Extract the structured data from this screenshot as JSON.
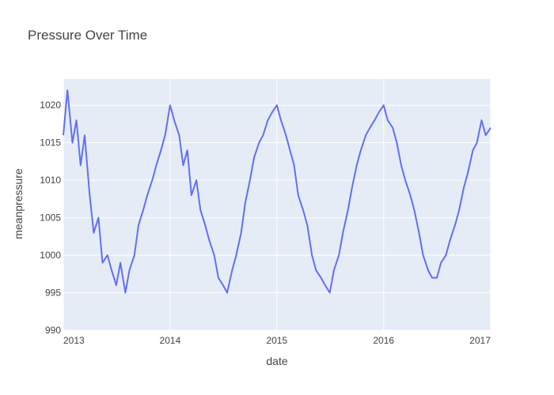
{
  "chart_data": {
    "type": "line",
    "title": "Pressure Over Time",
    "xlabel": "date",
    "ylabel": "meanpressure",
    "x_range": [
      "2013-01-01",
      "2017-01-01"
    ],
    "ylim": [
      990,
      1023.5
    ],
    "x_ticks": [
      {
        "date": "2013-01-01",
        "label": "2013"
      },
      {
        "date": "2014-01-01",
        "label": "2014"
      },
      {
        "date": "2015-01-01",
        "label": "2015"
      },
      {
        "date": "2016-01-01",
        "label": "2016"
      },
      {
        "date": "2017-01-01",
        "label": "2017"
      }
    ],
    "y_ticks": [
      990,
      995,
      1000,
      1005,
      1010,
      1015,
      1020
    ],
    "grid": true,
    "colors": {
      "line": "#636efa",
      "plot_bg": "#e5ecf6",
      "grid": "#ffffff"
    },
    "series": [
      {
        "x": [
          "2013-01-01",
          "2013-01-15",
          "2013-02-01",
          "2013-02-15",
          "2013-03-01",
          "2013-03-15",
          "2013-04-01",
          "2013-04-15",
          "2013-05-01",
          "2013-05-15",
          "2013-06-01",
          "2013-06-15",
          "2013-07-01",
          "2013-07-15",
          "2013-08-01",
          "2013-08-15",
          "2013-09-01",
          "2013-09-15",
          "2013-10-01",
          "2013-10-15",
          "2013-11-01",
          "2013-11-15",
          "2013-12-01",
          "2013-12-15",
          "2014-01-01",
          "2014-01-15",
          "2014-02-01",
          "2014-02-15",
          "2014-03-01",
          "2014-03-15",
          "2014-04-01",
          "2014-04-15",
          "2014-05-01",
          "2014-05-15",
          "2014-06-01",
          "2014-06-15",
          "2014-07-01",
          "2014-07-15",
          "2014-08-01",
          "2014-08-15",
          "2014-09-01",
          "2014-09-15",
          "2014-10-01",
          "2014-10-15",
          "2014-11-01",
          "2014-11-15",
          "2014-12-01",
          "2014-12-15",
          "2015-01-01",
          "2015-01-15",
          "2015-02-01",
          "2015-02-15",
          "2015-03-01",
          "2015-03-15",
          "2015-04-01",
          "2015-04-15",
          "2015-05-01",
          "2015-05-15",
          "2015-06-01",
          "2015-06-15",
          "2015-07-01",
          "2015-07-15",
          "2015-08-01",
          "2015-08-15",
          "2015-09-01",
          "2015-09-15",
          "2015-10-01",
          "2015-10-15",
          "2015-11-01",
          "2015-11-15",
          "2015-12-01",
          "2015-12-15",
          "2016-01-01",
          "2016-01-15",
          "2016-02-01",
          "2016-02-15",
          "2016-03-01",
          "2016-03-15",
          "2016-04-01",
          "2016-04-15",
          "2016-05-01",
          "2016-05-15",
          "2016-06-01",
          "2016-06-15",
          "2016-07-01",
          "2016-07-15",
          "2016-08-01",
          "2016-08-15",
          "2016-09-01",
          "2016-09-15",
          "2016-10-01",
          "2016-10-15",
          "2016-11-01",
          "2016-11-15",
          "2016-12-01",
          "2016-12-15",
          "2017-01-01"
        ],
        "y": [
          1016,
          1022,
          1015,
          1018,
          1012,
          1016,
          1008,
          1003,
          1005,
          999,
          1000,
          998,
          996,
          999,
          995,
          998,
          1000,
          1004,
          1006,
          1008,
          1010,
          1012,
          1014,
          1016,
          1020,
          1018,
          1016,
          1012,
          1014,
          1008,
          1010,
          1006,
          1004,
          1002,
          1000,
          997,
          996,
          995,
          998,
          1000,
          1003,
          1007,
          1010,
          1013,
          1015,
          1016,
          1018,
          1019,
          1020,
          1018,
          1016,
          1014,
          1012,
          1008,
          1006,
          1004,
          1000,
          998,
          997,
          996,
          995,
          998,
          1000,
          1003,
          1006,
          1009,
          1012,
          1014,
          1016,
          1017,
          1018,
          1019,
          1020,
          1018,
          1017,
          1015,
          1012,
          1010,
          1008,
          1006,
          1003,
          1000,
          998,
          997,
          997,
          999,
          1000,
          1002,
          1004,
          1006,
          1009,
          1011,
          1014,
          1015,
          1018,
          1016,
          1017
        ]
      }
    ]
  }
}
